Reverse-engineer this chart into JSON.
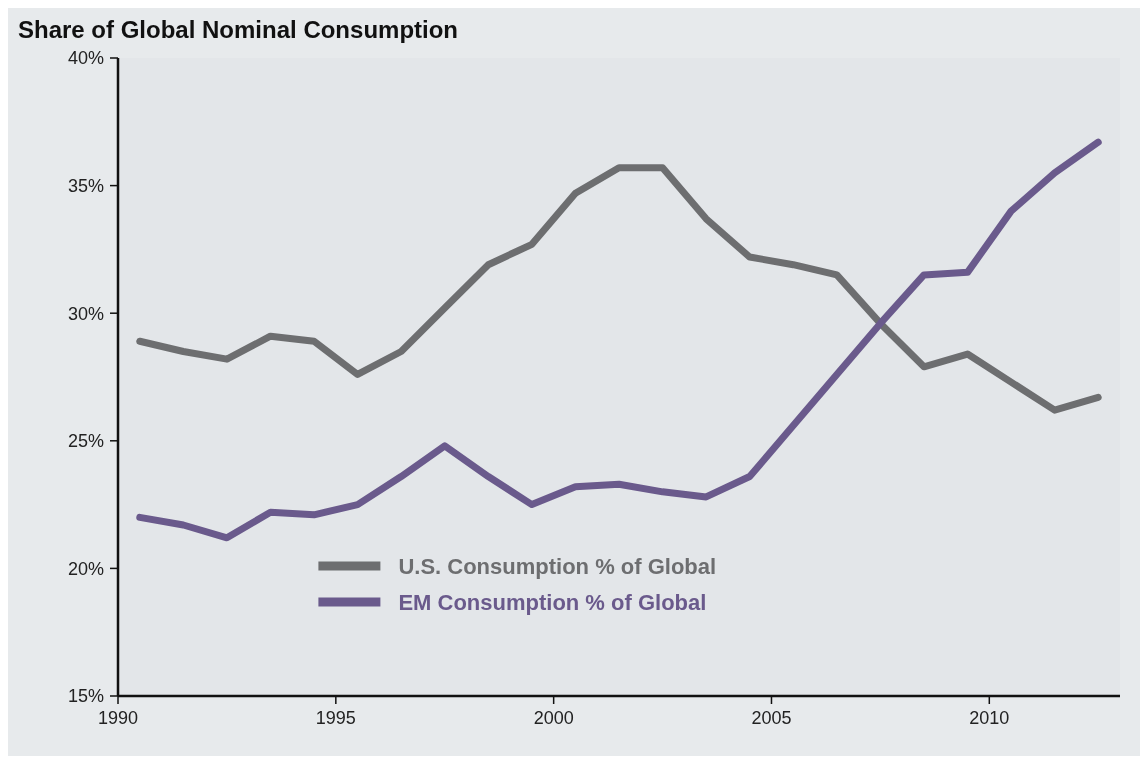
{
  "chart_data": {
    "type": "line",
    "title": "Share of Global Nominal Consumption",
    "x": [
      1990.5,
      1991.5,
      1992.5,
      1993.5,
      1994.5,
      1995.5,
      1996.5,
      1997.5,
      1998.5,
      1999.5,
      2000.5,
      2001.5,
      2002.5,
      2003.5,
      2004.5,
      2005.5,
      2006.5,
      2007.5,
      2008.5,
      2009.5,
      2010.5,
      2011.5,
      2012.5
    ],
    "series": [
      {
        "name": "U.S. Consumption % of Global",
        "color": "#6d6e70",
        "values": [
          28.9,
          28.5,
          28.2,
          29.1,
          28.9,
          27.6,
          28.5,
          30.2,
          31.9,
          32.7,
          34.7,
          35.7,
          35.7,
          33.7,
          32.2,
          31.9,
          31.5,
          29.6,
          27.9,
          28.4,
          27.3,
          26.2,
          26.7
        ]
      },
      {
        "name": "EM Consumption % of Global",
        "color": "#6a5a8c",
        "values": [
          22.0,
          21.7,
          21.2,
          22.2,
          22.1,
          22.5,
          23.6,
          24.8,
          23.6,
          22.5,
          23.2,
          23.3,
          23.0,
          22.8,
          23.6,
          25.6,
          27.6,
          29.6,
          31.5,
          31.6,
          34.0,
          35.5,
          36.7
        ]
      }
    ],
    "xlim": [
      1990,
      2013
    ],
    "xticks": [
      1990,
      1995,
      2000,
      2005,
      2010
    ],
    "ylim": [
      15,
      40
    ],
    "yticks": [
      {
        "value": 15,
        "label": "15%"
      },
      {
        "value": 20,
        "label": "20%"
      },
      {
        "value": 25,
        "label": "25%"
      },
      {
        "value": 30,
        "label": "30%"
      },
      {
        "value": 35,
        "label": "35%"
      },
      {
        "value": 40,
        "label": "40%"
      }
    ],
    "grid": false,
    "legend": "bottom",
    "marker": "none",
    "line_style": "solid"
  }
}
